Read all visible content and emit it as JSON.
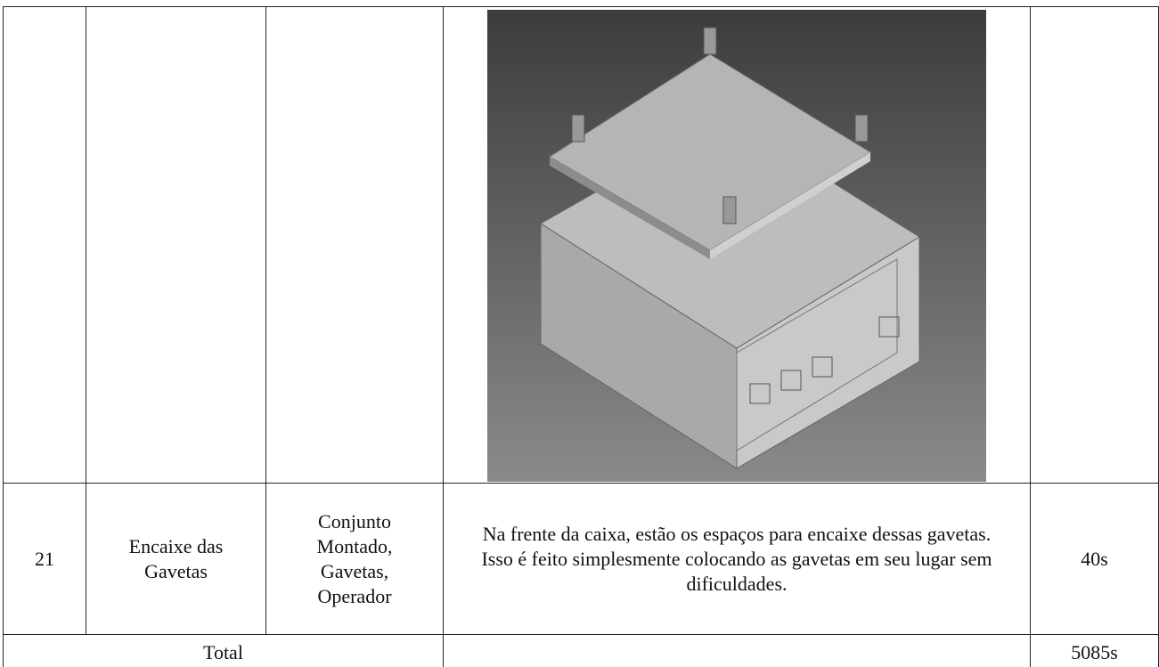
{
  "table": {
    "rows": [
      [
        "",
        "",
        "",
        "",
        ""
      ],
      [
        "21",
        "Encaixe das Gavetas",
        "Conjunto Montado, Gavetas, Operador",
        "Na frente da caixa, estão os espaços para encaixe dessas gavetas. Isso é feito simplesmente colocando as gavetas em seu lugar sem dificuldades.",
        "40s"
      ]
    ],
    "total": {
      "label": "Total",
      "value": "5085s"
    }
  }
}
